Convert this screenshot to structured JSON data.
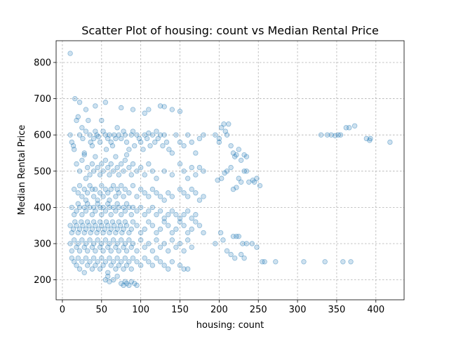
{
  "chart_data": {
    "type": "scatter",
    "title": "Scatter Plot of housing: count vs Median Rental Price",
    "xlabel": "housing: count",
    "ylabel": "Median Rental Price",
    "xlim": [
      -8,
      436
    ],
    "ylim": [
      145,
      860
    ],
    "xticks": [
      0,
      50,
      100,
      150,
      200,
      250,
      300,
      350,
      400
    ],
    "yticks": [
      200,
      300,
      400,
      500,
      600,
      700,
      800
    ],
    "grid": true,
    "color": "#1f77b4",
    "point_alpha": 0.25,
    "points": [
      [
        10,
        825
      ],
      [
        16,
        700
      ],
      [
        22,
        690
      ],
      [
        30,
        670
      ],
      [
        42,
        680
      ],
      [
        55,
        690
      ],
      [
        75,
        675
      ],
      [
        90,
        670
      ],
      [
        105,
        660
      ],
      [
        110,
        670
      ],
      [
        125,
        680
      ],
      [
        130,
        678
      ],
      [
        140,
        670
      ],
      [
        150,
        665
      ],
      [
        10,
        600
      ],
      [
        12,
        580
      ],
      [
        14,
        570
      ],
      [
        15,
        560
      ],
      [
        18,
        640
      ],
      [
        20,
        650
      ],
      [
        22,
        600
      ],
      [
        25,
        620
      ],
      [
        26,
        590
      ],
      [
        28,
        545
      ],
      [
        30,
        610
      ],
      [
        33,
        640
      ],
      [
        35,
        600
      ],
      [
        36,
        580
      ],
      [
        38,
        570
      ],
      [
        40,
        590
      ],
      [
        42,
        610
      ],
      [
        44,
        600
      ],
      [
        46,
        595
      ],
      [
        48,
        580
      ],
      [
        50,
        640
      ],
      [
        52,
        610
      ],
      [
        55,
        600
      ],
      [
        56,
        560
      ],
      [
        58,
        590
      ],
      [
        60,
        600
      ],
      [
        62,
        580
      ],
      [
        64,
        570
      ],
      [
        66,
        600
      ],
      [
        68,
        590
      ],
      [
        70,
        620
      ],
      [
        72,
        600
      ],
      [
        75,
        590
      ],
      [
        78,
        610
      ],
      [
        80,
        600
      ],
      [
        82,
        580
      ],
      [
        85,
        560
      ],
      [
        88,
        600
      ],
      [
        90,
        610
      ],
      [
        92,
        570
      ],
      [
        95,
        600
      ],
      [
        98,
        590
      ],
      [
        100,
        580
      ],
      [
        103,
        560
      ],
      [
        105,
        600
      ],
      [
        108,
        590
      ],
      [
        110,
        605
      ],
      [
        112,
        570
      ],
      [
        115,
        600
      ],
      [
        118,
        580
      ],
      [
        120,
        610
      ],
      [
        122,
        590
      ],
      [
        125,
        600
      ],
      [
        128,
        570
      ],
      [
        130,
        600
      ],
      [
        133,
        580
      ],
      [
        136,
        560
      ],
      [
        140,
        550
      ],
      [
        145,
        600
      ],
      [
        150,
        580
      ],
      [
        155,
        570
      ],
      [
        160,
        600
      ],
      [
        165,
        580
      ],
      [
        170,
        550
      ],
      [
        175,
        590
      ],
      [
        180,
        600
      ],
      [
        18,
        520
      ],
      [
        22,
        500
      ],
      [
        25,
        530
      ],
      [
        28,
        550
      ],
      [
        30,
        480
      ],
      [
        32,
        510
      ],
      [
        35,
        490
      ],
      [
        38,
        520
      ],
      [
        40,
        500
      ],
      [
        42,
        540
      ],
      [
        45,
        510
      ],
      [
        48,
        490
      ],
      [
        50,
        520
      ],
      [
        52,
        500
      ],
      [
        55,
        530
      ],
      [
        58,
        510
      ],
      [
        60,
        490
      ],
      [
        62,
        520
      ],
      [
        65,
        500
      ],
      [
        68,
        540
      ],
      [
        70,
        510
      ],
      [
        72,
        490
      ],
      [
        75,
        520
      ],
      [
        78,
        500
      ],
      [
        80,
        530
      ],
      [
        82,
        545
      ],
      [
        85,
        510
      ],
      [
        88,
        490
      ],
      [
        90,
        520
      ],
      [
        95,
        500
      ],
      [
        100,
        510
      ],
      [
        105,
        490
      ],
      [
        110,
        520
      ],
      [
        115,
        500
      ],
      [
        120,
        480
      ],
      [
        130,
        500
      ],
      [
        140,
        490
      ],
      [
        150,
        520
      ],
      [
        155,
        500
      ],
      [
        160,
        480
      ],
      [
        165,
        510
      ],
      [
        170,
        490
      ],
      [
        175,
        510
      ],
      [
        180,
        500
      ],
      [
        15,
        450
      ],
      [
        20,
        440
      ],
      [
        22,
        460
      ],
      [
        25,
        430
      ],
      [
        28,
        450
      ],
      [
        30,
        420
      ],
      [
        32,
        440
      ],
      [
        35,
        460
      ],
      [
        38,
        450
      ],
      [
        40,
        430
      ],
      [
        42,
        450
      ],
      [
        45,
        420
      ],
      [
        48,
        440
      ],
      [
        50,
        460
      ],
      [
        52,
        430
      ],
      [
        55,
        450
      ],
      [
        58,
        440
      ],
      [
        60,
        420
      ],
      [
        62,
        450
      ],
      [
        65,
        460
      ],
      [
        68,
        430
      ],
      [
        70,
        450
      ],
      [
        72,
        440
      ],
      [
        75,
        460
      ],
      [
        78,
        430
      ],
      [
        80,
        450
      ],
      [
        85,
        440
      ],
      [
        90,
        460
      ],
      [
        95,
        430
      ],
      [
        100,
        450
      ],
      [
        105,
        440
      ],
      [
        110,
        430
      ],
      [
        115,
        450
      ],
      [
        120,
        440
      ],
      [
        125,
        430
      ],
      [
        130,
        420
      ],
      [
        135,
        440
      ],
      [
        140,
        430
      ],
      [
        150,
        450
      ],
      [
        155,
        440
      ],
      [
        160,
        430
      ],
      [
        165,
        450
      ],
      [
        170,
        440
      ],
      [
        175,
        420
      ],
      [
        180,
        430
      ],
      [
        12,
        400
      ],
      [
        15,
        380
      ],
      [
        18,
        390
      ],
      [
        20,
        410
      ],
      [
        22,
        400
      ],
      [
        25,
        380
      ],
      [
        28,
        400
      ],
      [
        30,
        390
      ],
      [
        32,
        410
      ],
      [
        35,
        400
      ],
      [
        38,
        380
      ],
      [
        40,
        400
      ],
      [
        42,
        390
      ],
      [
        45,
        410
      ],
      [
        48,
        400
      ],
      [
        50,
        380
      ],
      [
        52,
        400
      ],
      [
        55,
        390
      ],
      [
        58,
        410
      ],
      [
        60,
        400
      ],
      [
        62,
        380
      ],
      [
        65,
        400
      ],
      [
        68,
        390
      ],
      [
        70,
        410
      ],
      [
        72,
        400
      ],
      [
        75,
        380
      ],
      [
        78,
        400
      ],
      [
        80,
        390
      ],
      [
        82,
        410
      ],
      [
        85,
        400
      ],
      [
        88,
        380
      ],
      [
        90,
        400
      ],
      [
        95,
        390
      ],
      [
        100,
        400
      ],
      [
        105,
        380
      ],
      [
        110,
        390
      ],
      [
        115,
        400
      ],
      [
        120,
        380
      ],
      [
        125,
        390
      ],
      [
        130,
        370
      ],
      [
        135,
        380
      ],
      [
        140,
        390
      ],
      [
        145,
        380
      ],
      [
        150,
        370
      ],
      [
        155,
        380
      ],
      [
        160,
        390
      ],
      [
        165,
        370
      ],
      [
        170,
        380
      ],
      [
        10,
        350
      ],
      [
        12,
        330
      ],
      [
        14,
        340
      ],
      [
        16,
        360
      ],
      [
        18,
        350
      ],
      [
        20,
        330
      ],
      [
        22,
        340
      ],
      [
        24,
        360
      ],
      [
        26,
        350
      ],
      [
        28,
        330
      ],
      [
        30,
        340
      ],
      [
        32,
        360
      ],
      [
        34,
        350
      ],
      [
        36,
        330
      ],
      [
        38,
        340
      ],
      [
        40,
        360
      ],
      [
        42,
        350
      ],
      [
        44,
        330
      ],
      [
        46,
        340
      ],
      [
        48,
        360
      ],
      [
        50,
        350
      ],
      [
        52,
        330
      ],
      [
        54,
        340
      ],
      [
        56,
        360
      ],
      [
        58,
        350
      ],
      [
        60,
        330
      ],
      [
        62,
        340
      ],
      [
        64,
        360
      ],
      [
        66,
        350
      ],
      [
        68,
        330
      ],
      [
        70,
        340
      ],
      [
        72,
        360
      ],
      [
        74,
        350
      ],
      [
        76,
        330
      ],
      [
        78,
        340
      ],
      [
        80,
        360
      ],
      [
        82,
        350
      ],
      [
        85,
        330
      ],
      [
        88,
        340
      ],
      [
        90,
        360
      ],
      [
        95,
        350
      ],
      [
        100,
        330
      ],
      [
        105,
        340
      ],
      [
        110,
        360
      ],
      [
        115,
        350
      ],
      [
        120,
        330
      ],
      [
        125,
        340
      ],
      [
        130,
        360
      ],
      [
        135,
        350
      ],
      [
        140,
        330
      ],
      [
        145,
        340
      ],
      [
        150,
        360
      ],
      [
        155,
        350
      ],
      [
        160,
        330
      ],
      [
        165,
        340
      ],
      [
        170,
        360
      ],
      [
        175,
        350
      ],
      [
        180,
        330
      ],
      [
        10,
        300
      ],
      [
        12,
        280
      ],
      [
        15,
        310
      ],
      [
        18,
        290
      ],
      [
        20,
        300
      ],
      [
        22,
        280
      ],
      [
        25,
        310
      ],
      [
        28,
        290
      ],
      [
        30,
        300
      ],
      [
        32,
        280
      ],
      [
        35,
        310
      ],
      [
        38,
        290
      ],
      [
        40,
        300
      ],
      [
        42,
        280
      ],
      [
        45,
        310
      ],
      [
        48,
        290
      ],
      [
        50,
        300
      ],
      [
        52,
        280
      ],
      [
        55,
        310
      ],
      [
        58,
        290
      ],
      [
        60,
        300
      ],
      [
        62,
        280
      ],
      [
        65,
        310
      ],
      [
        68,
        290
      ],
      [
        70,
        300
      ],
      [
        72,
        280
      ],
      [
        75,
        310
      ],
      [
        78,
        290
      ],
      [
        80,
        300
      ],
      [
        82,
        280
      ],
      [
        85,
        310
      ],
      [
        88,
        290
      ],
      [
        90,
        300
      ],
      [
        95,
        280
      ],
      [
        100,
        310
      ],
      [
        105,
        290
      ],
      [
        110,
        300
      ],
      [
        115,
        280
      ],
      [
        120,
        310
      ],
      [
        125,
        290
      ],
      [
        130,
        300
      ],
      [
        135,
        280
      ],
      [
        140,
        310
      ],
      [
        145,
        290
      ],
      [
        150,
        300
      ],
      [
        155,
        280
      ],
      [
        160,
        310
      ],
      [
        165,
        290
      ],
      [
        12,
        260
      ],
      [
        15,
        250
      ],
      [
        18,
        240
      ],
      [
        20,
        260
      ],
      [
        22,
        230
      ],
      [
        25,
        250
      ],
      [
        28,
        220
      ],
      [
        30,
        260
      ],
      [
        32,
        240
      ],
      [
        35,
        250
      ],
      [
        38,
        230
      ],
      [
        40,
        260
      ],
      [
        42,
        240
      ],
      [
        45,
        250
      ],
      [
        48,
        230
      ],
      [
        50,
        260
      ],
      [
        52,
        240
      ],
      [
        55,
        250
      ],
      [
        58,
        220
      ],
      [
        60,
        260
      ],
      [
        62,
        240
      ],
      [
        65,
        250
      ],
      [
        68,
        230
      ],
      [
        70,
        260
      ],
      [
        72,
        240
      ],
      [
        75,
        250
      ],
      [
        78,
        230
      ],
      [
        80,
        260
      ],
      [
        82,
        240
      ],
      [
        85,
        250
      ],
      [
        88,
        230
      ],
      [
        90,
        260
      ],
      [
        95,
        250
      ],
      [
        100,
        240
      ],
      [
        105,
        260
      ],
      [
        110,
        250
      ],
      [
        115,
        240
      ],
      [
        120,
        260
      ],
      [
        125,
        250
      ],
      [
        130,
        240
      ],
      [
        135,
        230
      ],
      [
        140,
        250
      ],
      [
        150,
        240
      ],
      [
        155,
        230
      ],
      [
        160,
        230
      ],
      [
        55,
        200
      ],
      [
        58,
        210
      ],
      [
        60,
        195
      ],
      [
        65,
        200
      ],
      [
        70,
        210
      ],
      [
        75,
        190
      ],
      [
        78,
        185
      ],
      [
        80,
        195
      ],
      [
        82,
        190
      ],
      [
        85,
        185
      ],
      [
        88,
        195
      ],
      [
        92,
        190
      ],
      [
        95,
        185
      ],
      [
        195,
        600
      ],
      [
        200,
        590
      ],
      [
        203,
        620
      ],
      [
        206,
        630
      ],
      [
        208,
        610
      ],
      [
        210,
        600
      ],
      [
        212,
        630
      ],
      [
        215,
        570
      ],
      [
        218,
        550
      ],
      [
        220,
        540
      ],
      [
        222,
        545
      ],
      [
        225,
        560
      ],
      [
        228,
        530
      ],
      [
        232,
        545
      ],
      [
        235,
        540
      ],
      [
        200,
        580
      ],
      [
        198,
        475
      ],
      [
        203,
        480
      ],
      [
        207,
        495
      ],
      [
        210,
        500
      ],
      [
        215,
        510
      ],
      [
        218,
        450
      ],
      [
        222,
        455
      ],
      [
        225,
        480
      ],
      [
        228,
        470
      ],
      [
        232,
        500
      ],
      [
        235,
        500
      ],
      [
        238,
        470
      ],
      [
        243,
        475
      ],
      [
        248,
        480
      ],
      [
        252,
        460
      ],
      [
        245,
        470
      ],
      [
        195,
        300
      ],
      [
        202,
        330
      ],
      [
        205,
        310
      ],
      [
        210,
        280
      ],
      [
        215,
        270
      ],
      [
        218,
        320
      ],
      [
        222,
        320
      ],
      [
        225,
        320
      ],
      [
        228,
        270
      ],
      [
        232,
        260
      ],
      [
        235,
        300
      ],
      [
        242,
        300
      ],
      [
        248,
        290
      ],
      [
        220,
        260
      ],
      [
        230,
        300
      ],
      [
        255,
        250
      ],
      [
        258,
        250
      ],
      [
        272,
        250
      ],
      [
        308,
        250
      ],
      [
        335,
        250
      ],
      [
        358,
        250
      ],
      [
        368,
        250
      ],
      [
        330,
        600
      ],
      [
        338,
        600
      ],
      [
        343,
        600
      ],
      [
        348,
        598
      ],
      [
        352,
        600
      ],
      [
        355,
        600
      ],
      [
        362,
        620
      ],
      [
        366,
        620
      ],
      [
        373,
        625
      ],
      [
        388,
        590
      ],
      [
        393,
        590
      ],
      [
        392,
        585
      ],
      [
        418,
        580
      ]
    ]
  }
}
